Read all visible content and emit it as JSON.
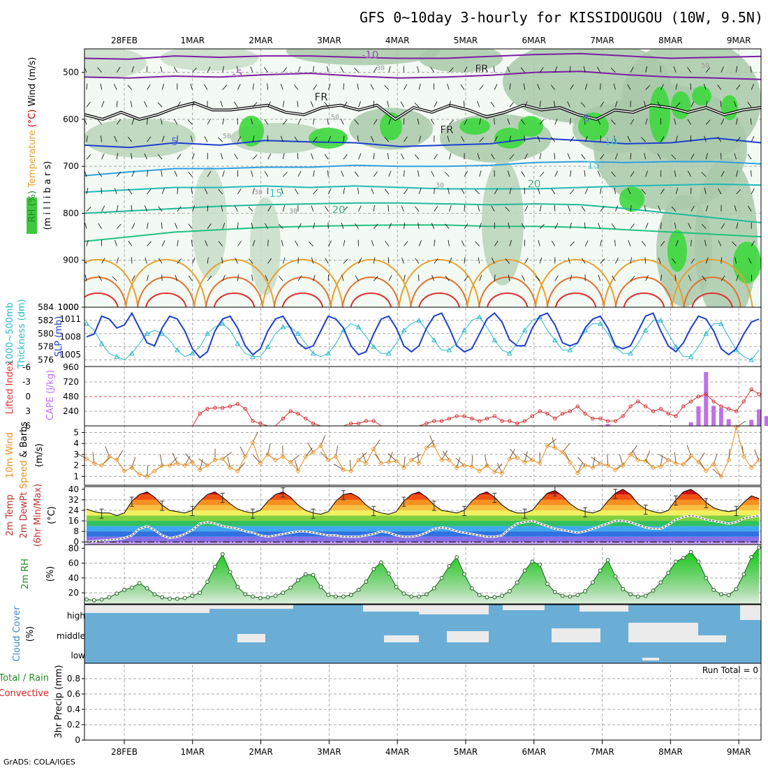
{
  "chart_data": {
    "type": "meteogram",
    "title": "GFS 0~10day 3-hourly for KISSIDOUGOU (10W, 9.5N)",
    "credit": "GrADS: COLA/IGES",
    "run_total": "Run Total = 0",
    "dates": [
      "28FEB",
      "1MAR",
      "2MAR",
      "3MAR",
      "4MAR",
      "5MAR",
      "6MAR",
      "7MAR",
      "8MAR",
      "9MAR"
    ],
    "panels": [
      {
        "name": "upper-air",
        "ylabel_parts": [
          {
            "text": "RH (%)",
            "color": "#228b22"
          },
          {
            "text": "Temperature",
            "color": "#e8a030"
          },
          {
            "text": "(°C)",
            "color": "#cc0000"
          },
          {
            "text": "Wind (m/s)",
            "color": "#000000"
          }
        ],
        "ylabel2": "(m i l l i b a r s)",
        "yticks": [
          "500",
          "600",
          "700",
          "800",
          "900",
          "1000"
        ],
        "ylim": [
          1000,
          450
        ],
        "isotherm_labels": [
          "-10",
          "-5",
          "FR",
          "FR",
          "FR",
          "5",
          "5",
          "10",
          "15",
          "15",
          "20",
          "20"
        ],
        "rh_labels": [
          "50",
          "50",
          "50",
          "30",
          "30",
          "30",
          "30"
        ]
      },
      {
        "name": "thickness-slp",
        "ylabel_left": "1000~500mb Thickness (dm)",
        "ylabel_right": "SLP (mb)",
        "thickness_ticks": [
          "576",
          "578",
          "580",
          "582",
          "584"
        ],
        "slp_ticks": [
          "1005",
          "1008",
          "1011"
        ],
        "series": [
          {
            "name": "SLP (mb)",
            "color": "#1d3fcc",
            "values": [
              1008,
              1008.5,
              1011.5,
              1011,
              1009.5,
              1010,
              1012,
              1009.5,
              1007,
              1006.5,
              1009.5,
              1011.5,
              1011,
              1009,
              1006,
              1004.5,
              1005.5,
              1009,
              1011,
              1011.5,
              1009.5,
              1006.5,
              1005,
              1006,
              1009,
              1011,
              1011.5,
              1009.5,
              1007,
              1006,
              1006.5,
              1009,
              1011.5,
              1011,
              1009.5,
              1006.5,
              1005,
              1005.5,
              1008.5,
              1011,
              1011.5,
              1009.5,
              1006.5,
              1005.5,
              1006.5,
              1009.5,
              1011.5,
              1012,
              1009.5,
              1006.5,
              1005.5,
              1006,
              1008.5,
              1011,
              1012,
              1010.5,
              1007.5,
              1006.5,
              1006.5,
              1009.5,
              1011.5,
              1012,
              1010,
              1007,
              1006.5,
              1007,
              1009.5,
              1011,
              1011.5,
              1009.5,
              1006.5,
              1006,
              1006.5,
              1009,
              1011.5,
              1012,
              1009,
              1006.5,
              1005.5,
              1007,
              1009.5,
              1011.5,
              1011,
              1009,
              1006,
              1005,
              1006,
              1008.5,
              1010.5,
              1011
            ]
          },
          {
            "name": "Thickness (dm)",
            "color": "#27b8c8",
            "values": [
              581.5,
              580.5,
              578.5,
              577,
              576.5,
              576,
              577,
              578.5,
              580,
              580.5,
              580,
              579,
              577.5,
              576.5,
              577,
              578,
              580,
              581,
              581.5,
              580.5,
              578.5,
              577,
              576.5,
              576.5,
              578,
              580,
              581,
              581,
              580,
              578.5,
              577,
              576.5,
              577,
              578.5,
              580.5,
              581.5,
              581,
              579.5,
              578,
              577,
              577,
              578.5,
              580.5,
              581.5,
              582,
              580.5,
              579,
              577.5,
              577.5,
              578.5,
              580.5,
              582,
              582.5,
              581,
              579,
              577.5,
              577,
              578.5,
              580.5,
              582,
              582.5,
              580.5,
              579,
              577.5,
              577.5,
              578.5,
              580.5,
              581.5,
              581.5,
              580,
              578,
              577,
              577,
              578.5,
              580.5,
              582,
              582,
              580,
              578,
              576.5,
              576.5,
              578,
              580,
              581.5,
              581.5,
              579.5,
              577.5,
              576.5,
              576,
              577.5
            ]
          }
        ]
      },
      {
        "name": "cape-li",
        "ylabel_left": "Lifted Index",
        "ylabel_right": "CAPE (J/kg)",
        "li_ticks": [
          "-6",
          "-3",
          "0",
          "3",
          "6"
        ],
        "cape_ticks": [
          "240",
          "480",
          "720",
          "960"
        ],
        "series": [
          {
            "name": "Lifted Index",
            "color": "#d03030",
            "values": [
              6,
              6,
              6,
              6,
              6,
              6,
              6,
              6,
              6,
              6,
              6,
              6,
              6,
              6,
              6,
              3.5,
              2.5,
              2.3,
              2.3,
              2,
              1.5,
              2.5,
              5,
              5.5,
              6,
              6,
              4.5,
              3,
              3.5,
              4.5,
              5.5,
              6,
              6,
              6,
              6,
              5.5,
              5.5,
              5,
              5,
              6,
              6,
              6,
              6,
              6,
              6,
              5.5,
              5,
              5,
              4.5,
              4,
              4,
              4.5,
              5,
              4.5,
              4,
              5,
              5,
              5.5,
              5,
              4,
              3,
              3.5,
              4.5,
              3.5,
              3,
              2,
              3.5,
              4.5,
              4.5,
              5,
              5,
              4,
              2,
              1,
              2,
              3,
              2.5,
              3.5,
              4,
              2,
              1,
              0,
              -0.5,
              1,
              2,
              2.5,
              3,
              1,
              -1.5,
              -0.5
            ]
          },
          {
            "name": "CAPE (J/kg)",
            "color": "#c070e8",
            "values": [
              0,
              0,
              0,
              0,
              0,
              0,
              0,
              0,
              0,
              0,
              0,
              0,
              0,
              0,
              0,
              0,
              0,
              0,
              0,
              0,
              0,
              0,
              0,
              0,
              0,
              0,
              0,
              0,
              0,
              0,
              0,
              0,
              0,
              0,
              0,
              0,
              0,
              0,
              0,
              0,
              0,
              0,
              0,
              0,
              0,
              0,
              0,
              0,
              0,
              0,
              0,
              0,
              0,
              0,
              0,
              0,
              0,
              0,
              0,
              0,
              0,
              0,
              0,
              0,
              0,
              0,
              0,
              0,
              10,
              30,
              0,
              0,
              0,
              0,
              0,
              0,
              10,
              0,
              0,
              0,
              60,
              320,
              880,
              330,
              290,
              110,
              0,
              0,
              100,
              270,
              160
            ]
          }
        ]
      },
      {
        "name": "wind",
        "ylabel": "10m Wind Speed & Barbs (m/s)",
        "yticks": [
          "1",
          "2",
          "3",
          "4",
          "5"
        ],
        "series": [
          {
            "name": "10m Wind Speed",
            "color": "#e89020",
            "values": [
              2.6,
              2.2,
              2,
              2.8,
              2.5,
              1.5,
              1.8,
              1.2,
              1,
              1.5,
              2,
              2,
              2.2,
              2,
              2.3,
              1.6,
              2,
              2.5,
              2.6,
              1.8,
              1.5,
              2.8,
              4.1,
              2.2,
              3,
              2.5,
              2.8,
              2.3,
              1.5,
              2.8,
              3.2,
              3.8,
              2.5,
              2.8,
              1.6,
              1.5,
              2.5,
              2.2,
              3.5,
              2.2,
              2.3,
              2.4,
              1.8,
              2.5,
              2.2,
              3.6,
              3.8,
              2.5,
              2.5,
              1.8,
              2,
              1.9,
              1.5,
              2,
              1.4,
              1.3,
              2.6,
              2.7,
              2.3,
              2.5,
              2.2,
              3.8,
              3.6,
              3.2,
              2.3,
              1.3,
              2,
              1.8,
              2.2,
              2,
              1.6,
              2,
              3,
              2.5,
              2.4,
              1.8,
              1.9,
              2.5,
              2.2,
              2.1,
              2.9,
              2.3,
              1.5,
              2.1,
              1,
              2.5,
              5.5,
              2.8,
              1.8,
              2.5
            ]
          }
        ]
      },
      {
        "name": "temperature",
        "ylabel": "2m Temp 2m DewPt (6hr Min/Max) (°C)",
        "yticks": [
          "0",
          "8",
          "16",
          "24",
          "32",
          "40"
        ],
        "series": [
          {
            "name": "2m Temp",
            "color": "#000000",
            "values": [
              25,
              23,
              22,
              22,
              20,
              22,
              31,
              36,
              38,
              34,
              28,
              24,
              23,
              22,
              24,
              31,
              36,
              38,
              34,
              29,
              25,
              23,
              22,
              24,
              31,
              36,
              38,
              34,
              28,
              24,
              22,
              21,
              23,
              31,
              36,
              37,
              34,
              28,
              24,
              22,
              21,
              23,
              31,
              36,
              38,
              34,
              28,
              24,
              23,
              22,
              24,
              31,
              36,
              38,
              34,
              28,
              24,
              22,
              22,
              24,
              31,
              37,
              39,
              35,
              29,
              25,
              23,
              22,
              24,
              31,
              37,
              40,
              36,
              29,
              25,
              23,
              22,
              24,
              32,
              38,
              40,
              36,
              30,
              26,
              24,
              23,
              24,
              30,
              35,
              33
            ]
          },
          {
            "name": "2m DewPt",
            "color": "#888888",
            "values": [
              0,
              0.5,
              1,
              1.5,
              2,
              3,
              5,
              10,
              12,
              9,
              5,
              3,
              4,
              6,
              9,
              14,
              15,
              14,
              12,
              11,
              10,
              8,
              7,
              5,
              4,
              5,
              6,
              7,
              8,
              8,
              7,
              6,
              5,
              5,
              4,
              4,
              4,
              5,
              6,
              8,
              7,
              5,
              4,
              4,
              5,
              7,
              10,
              11,
              10,
              8,
              7,
              6,
              5,
              4,
              4,
              5,
              10,
              14,
              15,
              16,
              14,
              12,
              10,
              9,
              8,
              7,
              8,
              10,
              12,
              14,
              16,
              16,
              15,
              13,
              11,
              10,
              10,
              13,
              17,
              19,
              20,
              19,
              17,
              16,
              15,
              14,
              15,
              18,
              19,
              20
            ]
          }
        ]
      },
      {
        "name": "rh",
        "ylabel": "2m RH (%)",
        "yticks": [
          "20",
          "40",
          "60",
          "80"
        ],
        "series": [
          {
            "name": "2m RH",
            "color": "#006400",
            "values": [
              11,
              10,
              11,
              14,
              19,
              24,
              27,
              33,
              26,
              18,
              14,
              12,
              12,
              13,
              16,
              20,
              35,
              55,
              72,
              48,
              28,
              18,
              15,
              13,
              14,
              16,
              20,
              27,
              37,
              45,
              44,
              28,
              17,
              15,
              15,
              17,
              24,
              35,
              52,
              61,
              46,
              28,
              19,
              15,
              15,
              18,
              26,
              40,
              56,
              68,
              45,
              26,
              17,
              14,
              14,
              16,
              22,
              34,
              50,
              62,
              58,
              32,
              21,
              16,
              15,
              17,
              22,
              34,
              50,
              64,
              42,
              25,
              18,
              15,
              16,
              23,
              34,
              47,
              62,
              67,
              75,
              62,
              40,
              24,
              18,
              17,
              25,
              45,
              68,
              81
            ]
          }
        ]
      },
      {
        "name": "cloud",
        "ylabel": "Cloud Cover (%)",
        "levels": [
          "high",
          "middle",
          "low"
        ]
      },
      {
        "name": "precip",
        "ylabel_parts": [
          {
            "text": "Total / Rain",
            "color": "#228b22"
          },
          {
            "text": "Convective",
            "color": "#dd2020"
          },
          {
            "text": "3hr Precip (mm)",
            "color": "#000000"
          }
        ],
        "yticks": [
          "0",
          "0.2",
          "0.4",
          "0.6",
          "0.8"
        ],
        "ylim": [
          0,
          1
        ]
      }
    ]
  }
}
